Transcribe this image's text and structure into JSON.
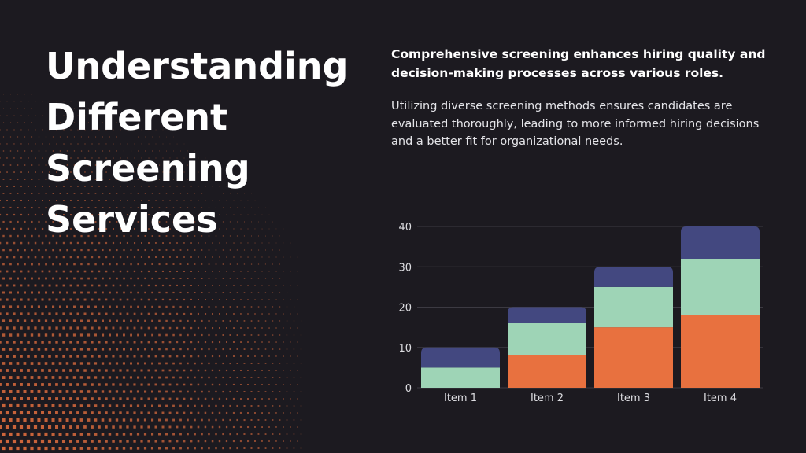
{
  "slide": {
    "title_lines": [
      "Understanding",
      "Different",
      "Screening",
      "Services"
    ],
    "lead": "Comprehensive screening enhances hiring quality and decision-making processes across various roles.",
    "body": "Utilizing diverse screening methods ensures candidates are evaluated thoroughly, leading to more informed hiring decisions and a better fit for organizational needs."
  },
  "colors": {
    "background": "#1c1a20",
    "dots": "#e8713f",
    "series": [
      "#e8713f",
      "#9ed4b6",
      "#434880"
    ],
    "gridline": "#3c3a42",
    "axis_text": "#dcdce0"
  },
  "chart_data": {
    "type": "bar",
    "stacked": true,
    "categories": [
      "Item 1",
      "Item 2",
      "Item 3",
      "Item 4"
    ],
    "series": [
      {
        "values": [
          0,
          8,
          15,
          18
        ]
      },
      {
        "values": [
          5,
          8,
          10,
          14
        ]
      },
      {
        "values": [
          5,
          4,
          5,
          8
        ]
      }
    ],
    "ylim": [
      0,
      40
    ],
    "yticks": [
      0,
      10,
      20,
      30,
      40
    ],
    "grid": true,
    "legend": "none"
  }
}
